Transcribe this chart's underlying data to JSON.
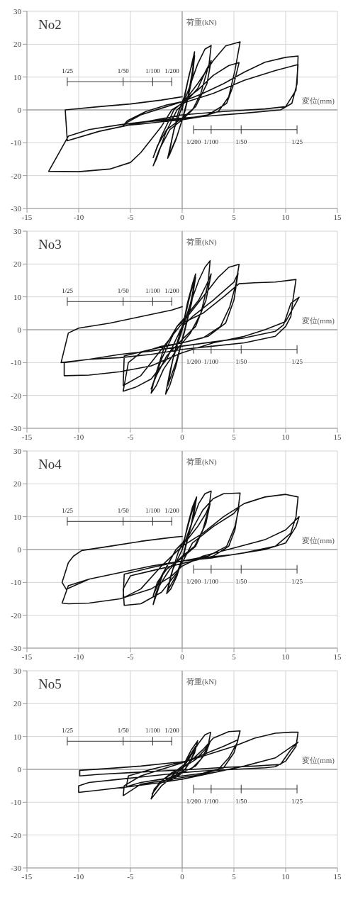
{
  "chart_data": [
    {
      "type": "line",
      "title": "No2",
      "xlabel": "変位(mm)",
      "ylabel": "荷重(kN)",
      "xlim": [
        -15,
        15
      ],
      "xticks": [
        -15,
        -10,
        -5,
        0,
        5,
        10,
        15
      ],
      "ylim": [
        -30,
        30
      ],
      "yticks": [
        -30,
        -20,
        -10,
        0,
        10,
        20,
        30
      ],
      "grid": true,
      "marker": "none",
      "series": [
        {
          "color": "#111111",
          "x": [
            0,
            0.5,
            1.0,
            1.2,
            1.0,
            0.5,
            0,
            -0.6,
            -1.2,
            -1.4,
            -1.0,
            -0.4,
            0.2,
            0.7,
            1.2,
            1.0,
            0.3,
            -0.5,
            -1.3,
            -0.8,
            0,
            0.6,
            1.5,
            2.2,
            2.8,
            2.6,
            1.8,
            1.0,
            0,
            -1.2,
            -2.2,
            -2.8,
            -2.5,
            -1.6,
            -0.5,
            0.5,
            1.5,
            2.3,
            2.8,
            2.4,
            1.3,
            0,
            -1.5,
            -2.4,
            -2.8,
            -2.0,
            -0.8,
            0.3,
            1.5,
            3,
            4.2,
            5.6,
            5.1,
            4.5,
            3.5,
            2,
            0,
            -2,
            -4,
            -5.7,
            -5.3,
            -3.5,
            -1.5,
            0,
            1.5,
            3,
            4.5,
            5.5,
            5.0,
            4.3,
            2.5,
            0,
            -3,
            -5.6,
            -4,
            -1.5,
            0,
            2,
            4,
            6,
            8,
            10,
            11.2,
            11.1,
            10.6,
            9.5,
            6,
            2,
            -2,
            -6,
            -9,
            -11,
            -12.9,
            -10,
            -7,
            -5,
            -4,
            -3,
            -2,
            -1,
            0,
            1,
            3,
            6,
            9,
            11.2,
            11,
            10,
            8,
            4,
            0,
            -5,
            -8,
            -11.1,
            -11.3,
            -8,
            -5,
            -2,
            0
          ],
          "values": [
            0,
            8,
            15,
            17.7,
            12,
            3,
            -3,
            -9,
            -13.5,
            -14.7,
            -9,
            -1,
            4,
            11,
            16.5,
            10,
            0,
            -8,
            -14,
            -6,
            1,
            6,
            14,
            18.5,
            19.6,
            14,
            5,
            0,
            -3,
            -6,
            -12,
            -17,
            -15,
            -7,
            0,
            3,
            6.5,
            12,
            15,
            8,
            1,
            -2.5,
            -6,
            -11,
            -14.5,
            -8,
            0,
            3,
            8,
            15,
            19.5,
            20.7,
            12,
            4,
            -0.5,
            -2,
            -3,
            -3.6,
            -4.3,
            -4.8,
            -3.3,
            -0.5,
            1.5,
            2.5,
            6,
            10.5,
            13.5,
            14.4,
            8,
            2,
            -1.5,
            -2.8,
            -3.5,
            -4.3,
            -1.5,
            1,
            2.5,
            5,
            8,
            11.5,
            14.5,
            16,
            16.4,
            8,
            2,
            0,
            -1,
            -2,
            -3,
            -4.5,
            -6,
            -8,
            -18.7,
            -18.8,
            -18,
            -16,
            -13,
            -9,
            -5,
            0,
            2,
            3,
            5,
            9,
            12,
            13.8,
            6,
            1,
            0.3,
            -0.5,
            -1.5,
            -4.5,
            -6.5,
            -9.4,
            0,
            1,
            1.8,
            3,
            4
          ]
        }
      ],
      "annotations": [
        "1/25",
        "1/50",
        "1/100",
        "1/200",
        "1/200",
        "1/100",
        "1/50",
        "1/25"
      ]
    },
    {
      "type": "line",
      "title": "No3",
      "xlabel": "変位(mm)",
      "ylabel": "荷重(kN)",
      "xlim": [
        -15,
        15
      ],
      "xticks": [
        -15,
        -10,
        -5,
        0,
        5,
        10,
        15
      ],
      "ylim": [
        -30,
        30
      ],
      "yticks": [
        -30,
        -20,
        -10,
        0,
        10,
        20,
        30
      ],
      "grid": true,
      "marker": "none",
      "series": [
        {
          "color": "#111111",
          "x": [
            0,
            0.5,
            1,
            1.3,
            1.0,
            0.4,
            0,
            -0.6,
            -1.2,
            -1.6,
            -1.2,
            -0.5,
            0.2,
            0.8,
            1.3,
            0.9,
            0.2,
            -0.6,
            -1.4,
            -0.9,
            0,
            0.8,
            1.6,
            2.2,
            2.7,
            2.5,
            1.8,
            0.8,
            -0.5,
            -1.8,
            -2.5,
            -3,
            -2.6,
            -1.8,
            -0.5,
            0.6,
            1.6,
            2.4,
            2.8,
            2.3,
            1.3,
            0,
            -1.5,
            -2.5,
            -3,
            -2,
            -0.5,
            0.5,
            2,
            3.5,
            4.5,
            5.5,
            5.2,
            4.6,
            3.7,
            2,
            0,
            -2,
            -4,
            -5.2,
            -5.7,
            -4.5,
            -3,
            -1.5,
            0,
            1,
            3,
            5,
            5.4,
            5.0,
            4.2,
            2.5,
            0,
            -3,
            -5.6,
            -5.7,
            -4,
            -2,
            0,
            2,
            4,
            5.5,
            7,
            9,
            11,
            10.7,
            10.5,
            10,
            9,
            6,
            3,
            0,
            -3,
            -6,
            -9,
            -11.4,
            -11.4,
            -9,
            -6,
            -3,
            0,
            3,
            6,
            8,
            10,
            11.3,
            10.5,
            9.8,
            9,
            6,
            3,
            0,
            -3,
            -6,
            -9,
            -11.7,
            -11,
            -10,
            -7,
            -4,
            -1,
            0
          ],
          "values": [
            0,
            8,
            14,
            17,
            11,
            2,
            -3,
            -11,
            -17,
            -19.6,
            -13,
            -4,
            3,
            11,
            16,
            8,
            -1,
            -10,
            -17,
            -9,
            0,
            8,
            15,
            19,
            21,
            14,
            5,
            -1,
            -6,
            -12,
            -17,
            -19.3,
            -14,
            -6,
            1,
            5,
            9,
            14,
            17,
            9,
            1,
            -3,
            -8,
            -14,
            -18,
            -9,
            1,
            4,
            10,
            16,
            19,
            19.9,
            14,
            7,
            1,
            -2.5,
            -4,
            -5,
            -7,
            -10,
            -18.7,
            -17.5,
            -15,
            -9,
            1,
            4,
            9,
            14.5,
            17.2,
            9,
            2,
            -2,
            -4,
            -6,
            -8,
            -17,
            -14,
            -6,
            2,
            5,
            10,
            14,
            14.3,
            14.5,
            15.3,
            9,
            4,
            1,
            -2,
            -4,
            -5,
            -6,
            -7.5,
            -8.5,
            -9,
            -10,
            -14,
            -13.8,
            -12.8,
            -11,
            -7,
            -4,
            -2,
            0,
            2.5,
            9.9,
            8,
            1.5,
            -0.5,
            -2.5,
            -3.7,
            -5,
            -6.5,
            -7.5,
            -9,
            -10,
            -1,
            0.5,
            2,
            4,
            6,
            7
          ]
        }
      ],
      "annotations": [
        "1/25",
        "1/50",
        "1/100",
        "1/200",
        "1/200",
        "1/100",
        "1/50",
        "1/25"
      ]
    },
    {
      "type": "line",
      "title": "No4",
      "xlabel": "変位(mm)",
      "ylabel": "荷重(kN)",
      "xlim": [
        -15,
        15
      ],
      "xticks": [
        -15,
        -10,
        -5,
        0,
        5,
        10,
        15
      ],
      "ylim": [
        -30,
        30
      ],
      "yticks": [
        -30,
        -20,
        -10,
        0,
        10,
        20,
        30
      ],
      "grid": true,
      "marker": "none",
      "series": [
        {
          "color": "#111111",
          "x": [
            0,
            0.5,
            1,
            1.4,
            1.1,
            0.4,
            0,
            -0.5,
            -1.1,
            -1.5,
            -1.1,
            -0.4,
            0.2,
            0.8,
            1.3,
            0.9,
            0.2,
            -0.6,
            -1.4,
            -0.9,
            0,
            0.8,
            1.6,
            2.2,
            2.8,
            2.6,
            2.0,
            1.2,
            0,
            -1.2,
            -2.2,
            -2.8,
            -2.6,
            -1.8,
            -0.6,
            0.5,
            1.5,
            2.3,
            2.7,
            2.3,
            1.3,
            0,
            -1.5,
            -2.4,
            -2.8,
            -2,
            -0.6,
            0.5,
            2,
            3,
            4,
            5.6,
            5.4,
            5.1,
            4.5,
            3,
            1,
            -1,
            -3,
            -5,
            -5.7,
            -5.6,
            -4,
            -2,
            -0.5,
            1,
            3,
            5,
            5.5,
            5.1,
            4.3,
            2.5,
            0,
            -3,
            -5.6,
            -5.7,
            -4,
            -2,
            0,
            2,
            4,
            6,
            8,
            10,
            11.2,
            11,
            10.5,
            9,
            6,
            3,
            0,
            -3,
            -6,
            -9,
            -11,
            -11.6,
            -11,
            -9,
            -6,
            -3,
            -1,
            0,
            2,
            5,
            8,
            10,
            11.3,
            11,
            10,
            8,
            5,
            2,
            0,
            -3,
            -6,
            -9,
            -11.2,
            -11.6,
            -11,
            -10.5,
            -9.7,
            -7,
            -4,
            -1,
            0
          ],
          "values": [
            0,
            7,
            13,
            16,
            10,
            2,
            -3,
            -8,
            -12,
            -13.4,
            -8,
            -1,
            3,
            10,
            15,
            8,
            -1,
            -8,
            -12.5,
            -6,
            0,
            7,
            14,
            17,
            17.8,
            13,
            6,
            1,
            -2,
            -6,
            -11,
            -16.7,
            -14,
            -7,
            0,
            3,
            7,
            11,
            14,
            8,
            1,
            -2.5,
            -6,
            -10,
            -14,
            -8,
            0,
            3.5,
            12,
            15.5,
            17,
            17.2,
            12,
            6,
            1,
            -2,
            -3.5,
            -5,
            -6.5,
            -8,
            -12,
            -17,
            -16.5,
            -13,
            -7,
            2,
            7,
            11,
            13,
            7,
            1,
            -2,
            -3.5,
            -5.5,
            -7.5,
            -14.7,
            -12,
            -5,
            1,
            5,
            10,
            14,
            16,
            16.8,
            16,
            10,
            5,
            1,
            -1,
            -2.5,
            -3.5,
            -5,
            -7,
            -9,
            -11,
            -16.3,
            -16.5,
            -16.3,
            -15,
            -12,
            -8,
            -5,
            -2,
            0.5,
            3,
            6,
            10,
            7,
            2,
            0,
            -1.5,
            -2.5,
            -3.5,
            -5,
            -7,
            -9,
            -12.1,
            -10,
            -4,
            -2,
            -0.3,
            1,
            2.5,
            3.7,
            4
          ]
        }
      ],
      "annotations": [
        "1/25",
        "1/50",
        "1/100",
        "1/200",
        "1/200",
        "1/100",
        "1/50",
        "1/25"
      ]
    },
    {
      "type": "line",
      "title": "No5",
      "xlabel": "変位(mm)",
      "ylabel": "荷重(kN)",
      "xlim": [
        -15,
        15
      ],
      "xticks": [
        -15,
        -10,
        -5,
        0,
        5,
        10,
        15
      ],
      "ylim": [
        -30,
        30
      ],
      "yticks": [
        -30,
        -20,
        -10,
        0,
        10,
        20,
        30
      ],
      "grid": true,
      "marker": "none",
      "series": [
        {
          "color": "#111111",
          "x": [
            0,
            0.4,
            0.9,
            1.5,
            1.2,
            0.5,
            0,
            -0.4,
            -0.9,
            -1.4,
            -1.0,
            -0.4,
            0.2,
            0.7,
            1.3,
            1.0,
            0.3,
            -0.5,
            -1.2,
            -0.8,
            0,
            0.8,
            1.6,
            2.2,
            2.75,
            2.5,
            1.8,
            1,
            0,
            -1,
            -2,
            -3,
            -2.7,
            -1.8,
            -0.8,
            0.3,
            1.3,
            2.2,
            2.7,
            2.3,
            1.3,
            0,
            -1.2,
            -2.2,
            -2.9,
            -2.2,
            -1,
            0.3,
            2,
            3,
            4.5,
            5.6,
            5.3,
            4.5,
            3.5,
            2,
            0,
            -2,
            -4,
            -5.7,
            -5.6,
            -4,
            -2,
            0,
            2,
            4,
            5.4,
            5,
            4,
            2,
            0,
            -2,
            -4,
            -5.4,
            -5.2,
            -3,
            -1,
            1,
            3,
            5,
            7,
            9,
            10.5,
            11.2,
            11,
            10,
            9,
            8,
            5,
            2,
            0,
            -3,
            -6,
            -9,
            -10,
            -10,
            -8,
            -5,
            -2,
            0,
            3,
            6,
            9,
            11.2,
            10.5,
            9.5,
            7,
            4,
            1,
            -2,
            -5,
            -8,
            -9.9,
            -9.9,
            -7,
            -4,
            -1,
            0
          ],
          "values": [
            0,
            3,
            6,
            8.7,
            5,
            1,
            -1,
            -2,
            -3,
            -3.7,
            -2,
            0,
            1.5,
            4,
            7,
            4,
            0,
            -1.5,
            -3.2,
            -1.5,
            0,
            4,
            8,
            10.5,
            11.3,
            7,
            3,
            0.5,
            -1,
            -2.5,
            -5,
            -9,
            -6,
            -3,
            -1,
            1,
            3,
            6,
            8.5,
            5,
            1,
            -1,
            -2.5,
            -4.5,
            -7.5,
            -4,
            -1,
            1,
            6,
            9.5,
            11.5,
            11.7,
            8,
            3.5,
            0,
            -1.5,
            -2.5,
            -3.5,
            -4.5,
            -8,
            -5,
            -2,
            0,
            2,
            4.5,
            7,
            9,
            5,
            0.5,
            -1.2,
            -2,
            -3,
            -4,
            -5.3,
            -2,
            0,
            1.5,
            3,
            5,
            7,
            9.5,
            11,
            11.3,
            11.3,
            7,
            2.5,
            0.8,
            0.5,
            0,
            -0.5,
            -1,
            -2,
            -3,
            -4,
            -5,
            -7,
            -6.3,
            -5.2,
            -4,
            -3,
            -1,
            1,
            3.5,
            8.3,
            6,
            1.5,
            1,
            0.6,
            0,
            -0.5,
            -1,
            -1.5,
            -2,
            -0.3,
            0.3,
            1,
            2,
            2.3
          ]
        }
      ],
      "annotations": [
        "1/25",
        "1/50",
        "1/100",
        "1/200",
        "1/200",
        "1/100",
        "1/50",
        "1/25"
      ]
    }
  ]
}
